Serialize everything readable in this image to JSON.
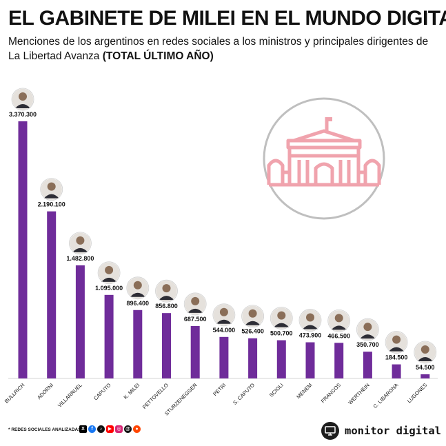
{
  "header": {
    "title": "EL GABINETE DE MILEI EN EL MUNDO DIGITAL",
    "subtitle_plain": "Menciones de los argentinos en redes sociales a los ministros y principales dirigentes de La Libertad Avanza ",
    "subtitle_bold": "(TOTAL ÚLTIMO AÑO)"
  },
  "colors": {
    "bar": "#6f2c9a",
    "building": "#f0a3ad",
    "circle_border": "#bfbfbf"
  },
  "chart_data": {
    "type": "bar",
    "title": "EL GABINETE DE MILEI EN EL MUNDO DIGITAL",
    "categories": [
      "BULLRICH",
      "ADORNI",
      "VILLARRUEL",
      "CAPUTO",
      "K. MILEI",
      "PETTOVELLO",
      "STURZENEGGER",
      "PETRI",
      "S. CAPUTO",
      "SCIOLI",
      "MENEM",
      "FRANCOS",
      "WERTHEIN",
      "C. LIBARONA",
      "LUGONES"
    ],
    "values": [
      3370300,
      2190100,
      1482800,
      1095000,
      896400,
      856800,
      687500,
      544000,
      526400,
      500700,
      473900,
      466500,
      350700,
      184500,
      54500
    ],
    "value_labels": [
      "3.370.300",
      "2.190.100",
      "1.482.800",
      "1.095.000",
      "896.400",
      "856.800",
      "687.500",
      "544.000",
      "526.400",
      "500.700",
      "473.900",
      "466.500",
      "350.700",
      "184.500",
      "54.500"
    ],
    "xlabel": "",
    "ylabel": "",
    "grid": false,
    "legend": "none"
  },
  "footer": {
    "note": "* REDES SOCIALES ANALIZADAS",
    "social_icons": [
      "x-icon",
      "facebook-icon",
      "tiktok-icon",
      "youtube-icon",
      "instagram-icon",
      "threads-icon",
      "reddit-icon"
    ],
    "brand": "monitor digital"
  }
}
